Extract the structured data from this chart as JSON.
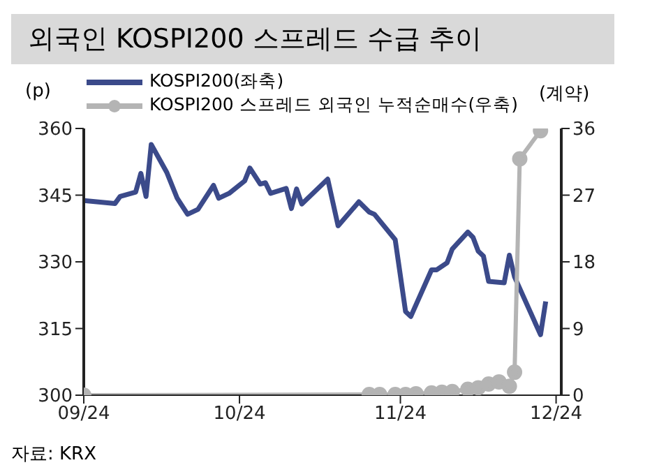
{
  "chart_data": {
    "type": "line",
    "title": "외국인 KOSPI200 스프레드 수급 추이",
    "ylabel": "(p)",
    "y2label": "(계약)",
    "annotations": [
      "자료: KRX"
    ],
    "xlim": [
      "2024-09-01",
      "2024-12-02"
    ],
    "xticks": [
      {
        "value": "2024-09",
        "label": "09/24"
      },
      {
        "value": "2024-10",
        "label": "10/24"
      },
      {
        "value": "2024-11",
        "label": "11/24"
      },
      {
        "value": "2024-12",
        "label": "12/24"
      }
    ],
    "ylim": [
      300,
      360
    ],
    "yticks": [
      300,
      315,
      330,
      345,
      360
    ],
    "y2lim": [
      0,
      36
    ],
    "y2ticks": [
      0,
      9,
      18,
      27,
      36
    ],
    "legend": "top left",
    "series": [
      {
        "name": "KOSPI200(좌축)",
        "color": "#3b4a8a",
        "marker": "none",
        "x": [
          "2024-09-01",
          "2024-09-07",
          "2024-09-08",
          "2024-09-11",
          "2024-09-12",
          "2024-09-13",
          "2024-09-14",
          "2024-09-17",
          "2024-09-19",
          "2024-09-21",
          "2024-09-23",
          "2024-09-26",
          "2024-09-27",
          "2024-09-29",
          "2024-10-02",
          "2024-10-03",
          "2024-10-05",
          "2024-10-06",
          "2024-10-07",
          "2024-10-10",
          "2024-10-11",
          "2024-10-12",
          "2024-10-13",
          "2024-10-18",
          "2024-10-20",
          "2024-10-24",
          "2024-10-26",
          "2024-10-27",
          "2024-10-31",
          "2024-11-02",
          "2024-11-03",
          "2024-11-07",
          "2024-11-08",
          "2024-11-10",
          "2024-11-11",
          "2024-11-14",
          "2024-11-15",
          "2024-11-16",
          "2024-11-17",
          "2024-11-18",
          "2024-11-21",
          "2024-11-22",
          "2024-11-23",
          "2024-11-28",
          "2024-11-29"
        ],
        "values": [
          343.8,
          343.1,
          344.7,
          345.7,
          349.9,
          344.7,
          356.4,
          350.1,
          344.3,
          340.7,
          341.8,
          347.2,
          344.3,
          345.4,
          348.2,
          351.1,
          347.5,
          347.8,
          345.4,
          346.5,
          342,
          346.4,
          343,
          348.6,
          338.1,
          343.5,
          341.2,
          340.7,
          335,
          318.8,
          317.7,
          328.2,
          328.2,
          329.8,
          332.9,
          336.7,
          335.5,
          332.4,
          331.3,
          325.6,
          325.3,
          331.5,
          326.6,
          313.6,
          321.1
        ]
      },
      {
        "name": "KOSPI200 스프레드 외국인 누적순매수(우축)",
        "color": "#b4b4b4",
        "axis": "y2",
        "marker": "circle",
        "x": [
          "2024-09-01",
          "2024-10-26",
          "2024-10-28",
          "2024-10-31",
          "2024-11-02",
          "2024-11-04",
          "2024-11-07",
          "2024-11-09",
          "2024-11-11",
          "2024-11-14",
          "2024-11-16",
          "2024-11-18",
          "2024-11-20",
          "2024-11-22",
          "2024-11-23",
          "2024-11-24",
          "2024-11-28"
        ],
        "values": [
          0,
          0.1,
          0.1,
          0.1,
          0.1,
          0.2,
          0.3,
          0.4,
          0.5,
          0.8,
          1,
          1.5,
          1.8,
          1.2,
          3.1,
          31.9,
          35.7
        ]
      }
    ]
  }
}
